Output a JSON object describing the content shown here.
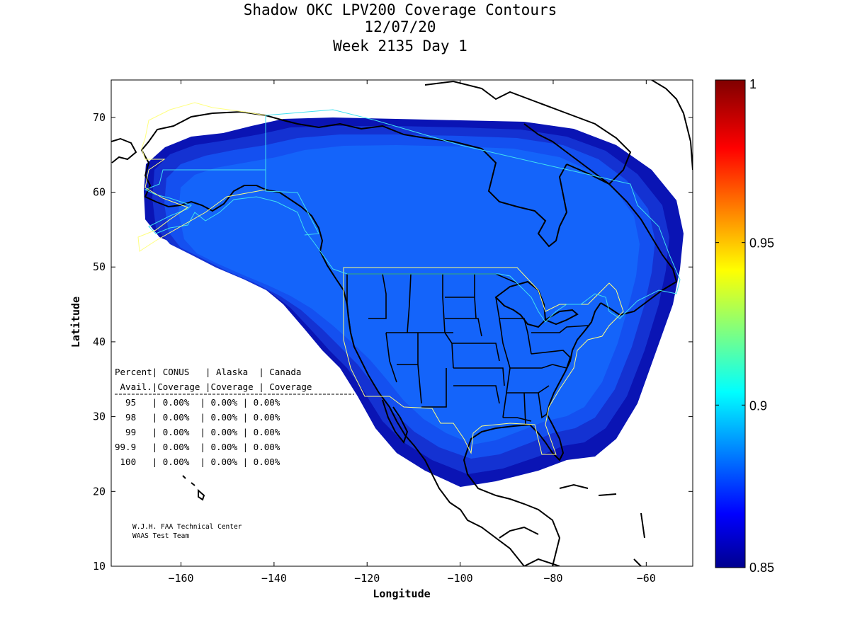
{
  "title": {
    "line1": "Shadow OKC LPV200 Coverage Contours",
    "line2": "12/07/20",
    "line3": "Week 2135 Day 1"
  },
  "map": {
    "xlabel": "Longitude",
    "ylabel": "Latitude",
    "lon_range": [
      -175,
      -50
    ],
    "lat_range": [
      10,
      75
    ],
    "x_ticks": [
      -160,
      -140,
      -120,
      -100,
      -80,
      -60
    ],
    "y_ticks": [
      10,
      20,
      30,
      40,
      50,
      60,
      70
    ],
    "colors": {
      "coverage_outer": "#0a14b4",
      "coverage_mid": "#1432d2",
      "coverage_inner": "#1450f0",
      "coverage_core": "#1464fa",
      "service_area_conus_canada": "#ffff80",
      "service_area_alaska_canada": "#40e0f0",
      "coastline": "#000000"
    }
  },
  "colorbar": {
    "range": [
      0.85,
      1
    ],
    "tick_labels": [
      "1",
      "0.95",
      "0.9",
      "0.85"
    ],
    "colormap": "jet"
  },
  "table": {
    "header1": "Percent| CONUS   | Alaska  | Canada",
    "header2": " Avail.|Coverage |Coverage | Coverage",
    "rows": [
      "  95   | 0.00%  | 0.00% | 0.00%",
      "  98   | 0.00%  | 0.00% | 0.00%",
      "  99   | 0.00%  | 0.00% | 0.00%",
      "99.9   | 0.00%  | 0.00% | 0.00%",
      " 100   | 0.00%  | 0.00% | 0.00%"
    ]
  },
  "credit": {
    "line1": "W.J.H. FAA Technical Center",
    "line2": "WAAS Test Team"
  }
}
